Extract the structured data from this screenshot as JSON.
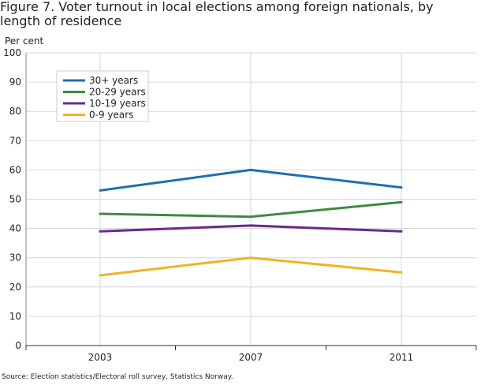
{
  "chart_data": {
    "type": "line",
    "title": "Figure 7. Voter turnout in local elections among foreign nationals, by length of residence",
    "ylabel": "Per cent",
    "xlabel": "",
    "categories": [
      "2003",
      "2007",
      "2011"
    ],
    "ylim": [
      0,
      100
    ],
    "yticks": [
      0,
      10,
      20,
      30,
      40,
      50,
      60,
      70,
      80,
      90,
      100
    ],
    "grid": true,
    "legend_position": "top-left",
    "series": [
      {
        "name": "30+ years",
        "color": "#1f6fb2",
        "values": [
          53,
          60,
          54
        ]
      },
      {
        "name": "20-29 years",
        "color": "#3d8b3d",
        "values": [
          45,
          44,
          49
        ]
      },
      {
        "name": "10-19 years",
        "color": "#6a2a8a",
        "values": [
          39,
          41,
          39
        ]
      },
      {
        "name": "0-9 years",
        "color": "#f0b323",
        "values": [
          24,
          30,
          25
        ]
      }
    ],
    "source": "Source: Election statistics/Electoral roll survey, Statistics Norway."
  }
}
